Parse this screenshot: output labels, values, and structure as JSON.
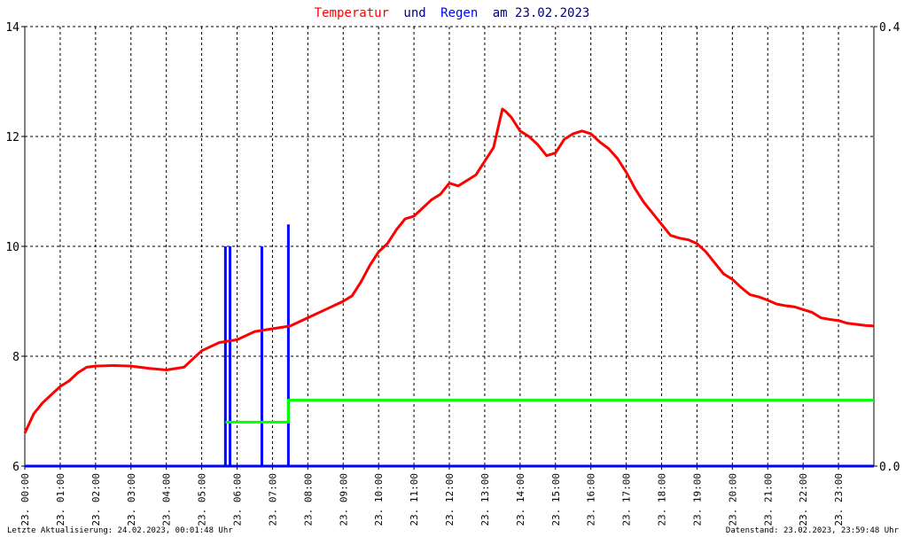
{
  "chart_data": {
    "type": "line",
    "title": {
      "part1": "Temperatur",
      "part2": "und",
      "part3": "Regen",
      "part4": "am 23.02.2023"
    },
    "colors": {
      "temperature": "#ff0000",
      "rain": "#0000ff",
      "rain_sum": "#00ff00",
      "title_text": "#000080",
      "grid": "#000000"
    },
    "grid": true,
    "x_unit": "hour",
    "xlim": [
      0,
      24
    ],
    "x_ticks": [
      0,
      1,
      2,
      3,
      4,
      5,
      6,
      7,
      8,
      9,
      10,
      11,
      12,
      13,
      14,
      15,
      16,
      17,
      18,
      19,
      20,
      21,
      22,
      23
    ],
    "x_tick_labels": [
      "23. 00:00",
      "23. 01:00",
      "23. 02:00",
      "23. 03:00",
      "23. 04:00",
      "23. 05:00",
      "23. 06:00",
      "23. 07:00",
      "23. 08:00",
      "23. 09:00",
      "23. 10:00",
      "23. 11:00",
      "23. 12:00",
      "23. 13:00",
      "23. 14:00",
      "23. 15:00",
      "23. 16:00",
      "23. 17:00",
      "23. 18:00",
      "23. 19:00",
      "23. 20:00",
      "23. 21:00",
      "23. 22:00",
      "23. 23:00"
    ],
    "y_left": {
      "ylim": [
        6,
        14
      ],
      "ticks": [
        6,
        8,
        10,
        12,
        14
      ],
      "tick_labels": [
        "6",
        "8",
        "10",
        "12",
        "14"
      ]
    },
    "y_right": {
      "ylim": [
        0,
        0.4
      ],
      "ticks": [
        0,
        0.4
      ],
      "tick_labels": [
        "0.0",
        "0.4"
      ]
    },
    "series": [
      {
        "key": "temperature",
        "axis": "left",
        "x": [
          0,
          0.25,
          0.5,
          0.75,
          1,
          1.25,
          1.5,
          1.75,
          2,
          2.5,
          3,
          3.5,
          4,
          4.5,
          5,
          5.5,
          6,
          6.5,
          7,
          7.5,
          8,
          8.5,
          9,
          9.25,
          9.5,
          9.75,
          10,
          10.25,
          10.5,
          10.75,
          11,
          11.25,
          11.5,
          11.75,
          12,
          12.25,
          12.5,
          12.75,
          13,
          13.25,
          13.5,
          13.6,
          13.75,
          14,
          14.25,
          14.5,
          14.75,
          15,
          15.25,
          15.5,
          15.75,
          16,
          16.25,
          16.5,
          16.75,
          17,
          17.25,
          17.5,
          17.75,
          18,
          18.25,
          18.5,
          18.75,
          19,
          19.25,
          19.5,
          19.75,
          20,
          20.25,
          20.5,
          20.75,
          21,
          21.25,
          21.5,
          21.75,
          22,
          22.25,
          22.5,
          22.75,
          23,
          23.25,
          23.5,
          23.75,
          24
        ],
        "values": [
          6.6,
          6.95,
          7.15,
          7.3,
          7.45,
          7.55,
          7.7,
          7.8,
          7.82,
          7.83,
          7.82,
          7.78,
          7.75,
          7.8,
          8.1,
          8.25,
          8.3,
          8.45,
          8.5,
          8.55,
          8.7,
          8.85,
          9.0,
          9.1,
          9.35,
          9.65,
          9.9,
          10.05,
          10.3,
          10.5,
          10.55,
          10.7,
          10.85,
          10.95,
          11.15,
          11.1,
          11.2,
          11.3,
          11.55,
          11.8,
          12.5,
          12.45,
          12.35,
          12.1,
          12.0,
          11.85,
          11.65,
          11.7,
          11.95,
          12.05,
          12.1,
          12.05,
          11.9,
          11.78,
          11.6,
          11.35,
          11.05,
          10.8,
          10.6,
          10.4,
          10.2,
          10.15,
          10.12,
          10.05,
          9.9,
          9.7,
          9.5,
          9.4,
          9.25,
          9.12,
          9.08,
          9.02,
          8.95,
          8.92,
          8.9,
          8.85,
          8.8,
          8.7,
          8.67,
          8.65,
          8.6,
          8.58,
          8.56,
          8.55
        ]
      },
      {
        "key": "rain",
        "axis": "right",
        "type": "bars",
        "x": [
          5.67,
          5.8,
          6.7,
          7.45
        ],
        "values": [
          0.2,
          0.2,
          0.2,
          0.22
        ]
      },
      {
        "key": "rain_sum",
        "axis": "right",
        "type": "step",
        "x": [
          5.67,
          5.87,
          6.75,
          7.45,
          24
        ],
        "values": [
          0.04,
          0.04,
          0.04,
          0.06,
          0.08
        ]
      }
    ]
  },
  "footer": {
    "last_update": "Letzte Aktualisierung: 24.02.2023, 00:01:48 Uhr",
    "data_status": "Datenstand: 23.02.2023, 23:59:48 Uhr"
  }
}
